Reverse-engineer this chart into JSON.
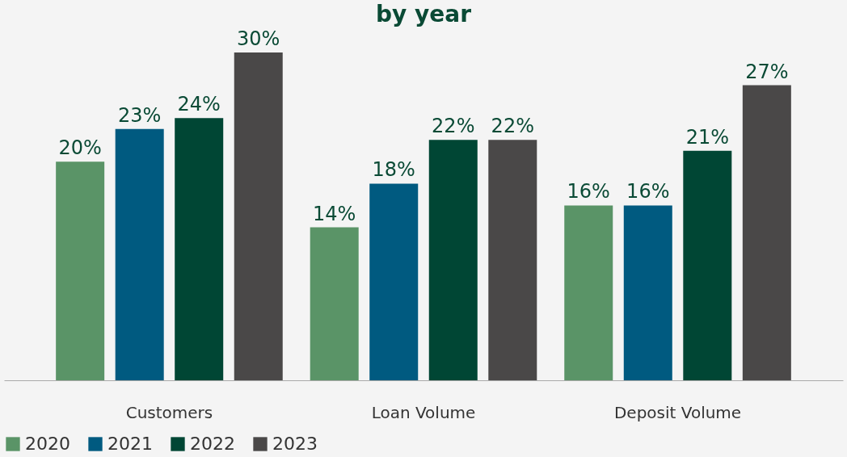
{
  "chart_data": {
    "type": "bar",
    "title": "by year",
    "categories": [
      "Customers",
      "Loan Volume",
      "Deposit Volume"
    ],
    "series": [
      {
        "name": "2020",
        "color": "#5a9467",
        "values": [
          20,
          14,
          16
        ],
        "value_labels": [
          "20%",
          "14%",
          "16%"
        ]
      },
      {
        "name": "2021",
        "color": "#005a80",
        "values": [
          23,
          18,
          16
        ],
        "value_labels": [
          "23%",
          "18%",
          "16%"
        ]
      },
      {
        "name": "2022",
        "color": "#004634",
        "values": [
          24,
          22,
          21
        ],
        "value_labels": [
          "24%",
          "22%",
          "21%"
        ]
      },
      {
        "name": "2023",
        "color": "#4a4848",
        "values": [
          30,
          22,
          27
        ],
        "value_labels": [
          "30%",
          "22%",
          "27%"
        ]
      }
    ],
    "legend": "bottom",
    "grid": false
  }
}
